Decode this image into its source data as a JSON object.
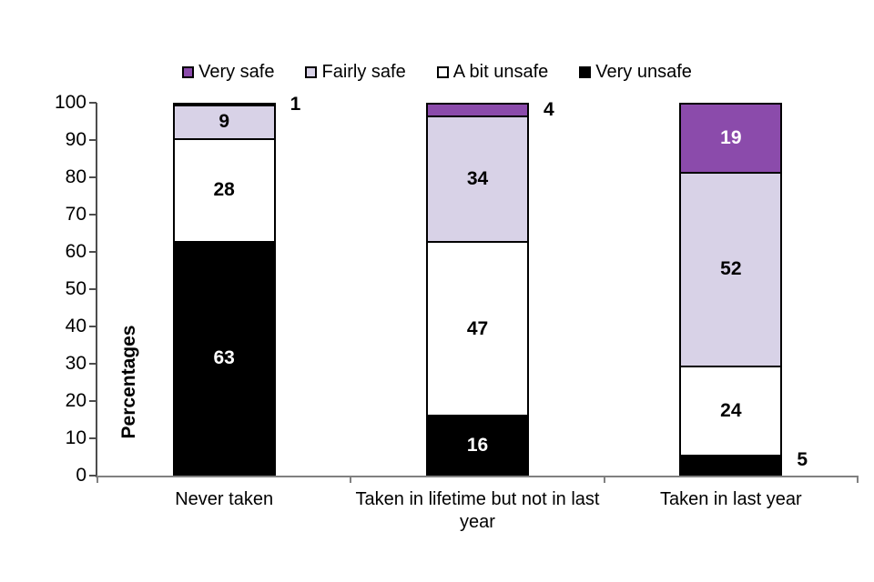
{
  "chart_data": {
    "type": "bar",
    "subtype": "stacked-100",
    "title": "",
    "ylabel": "Percentages",
    "xlabel": "",
    "ylim": [
      0,
      100
    ],
    "yticks": [
      0,
      10,
      20,
      30,
      40,
      50,
      60,
      70,
      80,
      90,
      100
    ],
    "grid": false,
    "legend_position": "top",
    "categories": [
      "Never taken",
      "Taken in lifetime but not in last year",
      "Taken in last year"
    ],
    "series": [
      {
        "name": "Very unsafe",
        "color": "#000000",
        "text_color": "#ffffff",
        "values": [
          63,
          16,
          5
        ],
        "label_placement": [
          "in",
          "in",
          "out"
        ]
      },
      {
        "name": "A bit unsafe",
        "color": "#ffffff",
        "text_color": "#000000",
        "values": [
          28,
          47,
          24
        ],
        "label_placement": [
          "in",
          "in",
          "in"
        ]
      },
      {
        "name": "Fairly safe",
        "color": "#d8d2e7",
        "text_color": "#000000",
        "values": [
          9,
          34,
          52
        ],
        "label_placement": [
          "in",
          "in",
          "in"
        ]
      },
      {
        "name": "Very safe",
        "color": "#8b4bab",
        "text_color": "#ffffff",
        "values": [
          1,
          4,
          19
        ],
        "label_placement": [
          "out",
          "out",
          "in"
        ]
      }
    ],
    "legend": [
      {
        "label": "Very safe",
        "color": "#8b4bab"
      },
      {
        "label": "Fairly safe",
        "color": "#d8d2e7"
      },
      {
        "label": "A bit unsafe",
        "color": "#ffffff"
      },
      {
        "label": "Very unsafe",
        "color": "#000000"
      }
    ]
  },
  "colors": {
    "y_axis": "#4d4d4d",
    "x_axis": "#808080",
    "segment_border": "#000000",
    "label_outside": "#000000"
  }
}
